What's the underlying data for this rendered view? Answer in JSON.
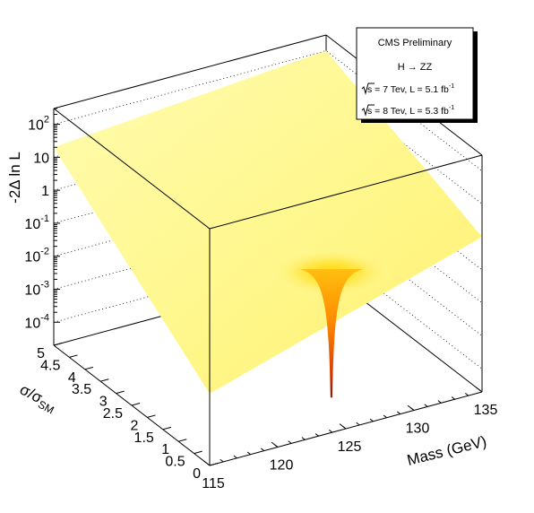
{
  "legend": {
    "title": "CMS Preliminary",
    "process": "H → ZZ",
    "lines": [
      {
        "energy": "s = 7 Tev",
        "lumi": "L = 5.1 fb",
        "exp": "-1"
      },
      {
        "energy": "s = 8 Tev",
        "lumi": "L = 5.3 fb",
        "exp": "-1"
      }
    ]
  },
  "chart_data": {
    "type": "surface3d",
    "title": "",
    "xlabel": "Mass (GeV)",
    "ylabel": "σ/σSM",
    "zlabel": "-2Δ ln L",
    "xlim": [
      115,
      135
    ],
    "ylim": [
      0,
      5
    ],
    "zlim": [
      2e-05,
      300
    ],
    "zscale": "log",
    "x_ticks": [
      {
        "value": 115,
        "label": "115"
      },
      {
        "value": 120,
        "label": "120"
      },
      {
        "value": 125,
        "label": "125"
      },
      {
        "value": 130,
        "label": "130"
      },
      {
        "value": 135,
        "label": "135"
      }
    ],
    "y_ticks": [
      {
        "value": 0,
        "label": "0"
      },
      {
        "value": 0.5,
        "label": "0.5"
      },
      {
        "value": 1,
        "label": "1"
      },
      {
        "value": 1.5,
        "label": "1.5"
      },
      {
        "value": 2,
        "label": "2"
      },
      {
        "value": 2.5,
        "label": "2.5"
      },
      {
        "value": 3,
        "label": "3"
      },
      {
        "value": 3.5,
        "label": "3.5"
      },
      {
        "value": 4,
        "label": "4"
      },
      {
        "value": 4.5,
        "label": "4.5"
      },
      {
        "value": 5,
        "label": "5"
      }
    ],
    "z_ticks": [
      {
        "value": 0.0001,
        "base": "10",
        "exp": "-4"
      },
      {
        "value": 0.001,
        "base": "10",
        "exp": "-3"
      },
      {
        "value": 0.01,
        "base": "10",
        "exp": "-2"
      },
      {
        "value": 0.1,
        "base": "10",
        "exp": "-1"
      },
      {
        "value": 1,
        "base": "1",
        "exp": ""
      },
      {
        "value": 10,
        "base": "10",
        "exp": ""
      },
      {
        "value": 100,
        "base": "10",
        "exp": "2"
      }
    ],
    "minimum": {
      "x": 126,
      "y": 0.9,
      "z": 3e-05
    },
    "surface_corners": [
      {
        "x": 115,
        "y": 0,
        "z": 0.003
      },
      {
        "x": 135,
        "y": 0,
        "z": 1
      },
      {
        "x": 115,
        "y": 5,
        "z": 20
      },
      {
        "x": 135,
        "y": 5,
        "z": 100
      }
    ],
    "colors": {
      "low": "#b01000",
      "mid": "#ff8000",
      "high": "#ffff60",
      "plateau": "#fffaa0"
    },
    "grid": true
  }
}
